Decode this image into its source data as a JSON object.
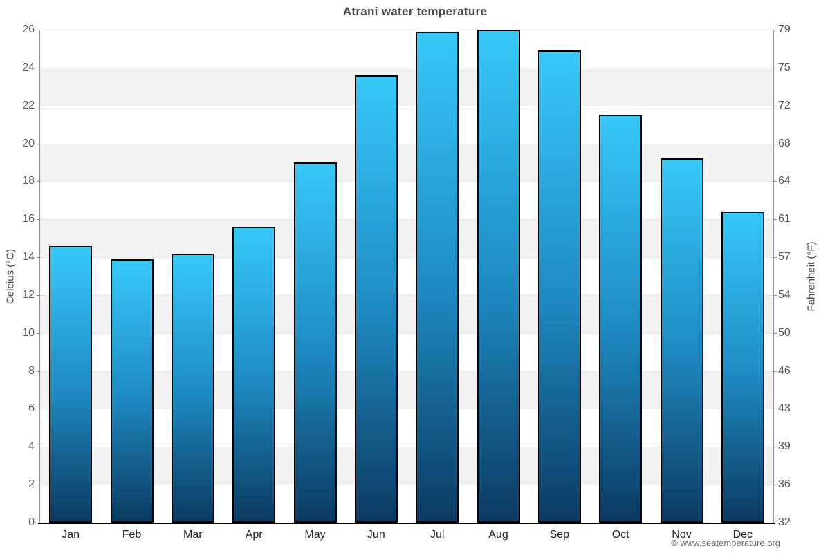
{
  "title": "Atrani water temperature",
  "credit": "© www.seatemperature.org",
  "chart_data": {
    "type": "bar",
    "title": "Atrani water temperature",
    "categories": [
      "Jan",
      "Feb",
      "Mar",
      "Apr",
      "May",
      "Jun",
      "Jul",
      "Aug",
      "Sep",
      "Oct",
      "Nov",
      "Dec"
    ],
    "values": [
      14.6,
      13.9,
      14.2,
      15.6,
      19.0,
      23.6,
      25.9,
      26.0,
      24.9,
      21.5,
      19.2,
      16.4
    ],
    "series_name": "Water temperature",
    "xlabel": "",
    "ylabel_left": "Celcius (°C)",
    "ylabel_right": "Fahrenheit (°F)",
    "ylim": [
      0,
      26
    ],
    "yticks_celsius": [
      0,
      2,
      4,
      6,
      8,
      10,
      12,
      14,
      16,
      18,
      20,
      22,
      24,
      26
    ],
    "yticks_fahrenheit": [
      32,
      36,
      39,
      43,
      46,
      50,
      54,
      57,
      61,
      64,
      68,
      72,
      75,
      79
    ],
    "grid": true,
    "legend": false,
    "colors": {
      "bar_top": "#37c9f6",
      "bar_mid": "#1e8bc3",
      "bar_bottom": "#0b3a61",
      "bar_border": "#000000",
      "band": "#f2f2f2",
      "gridline": "#e6e6e6",
      "axis_line": "#8f8f8f",
      "baseline": "#000000",
      "title_text": "#4a4a4a",
      "tick_text": "#555555",
      "month_text": "#222222",
      "credit_text": "#666666"
    }
  }
}
